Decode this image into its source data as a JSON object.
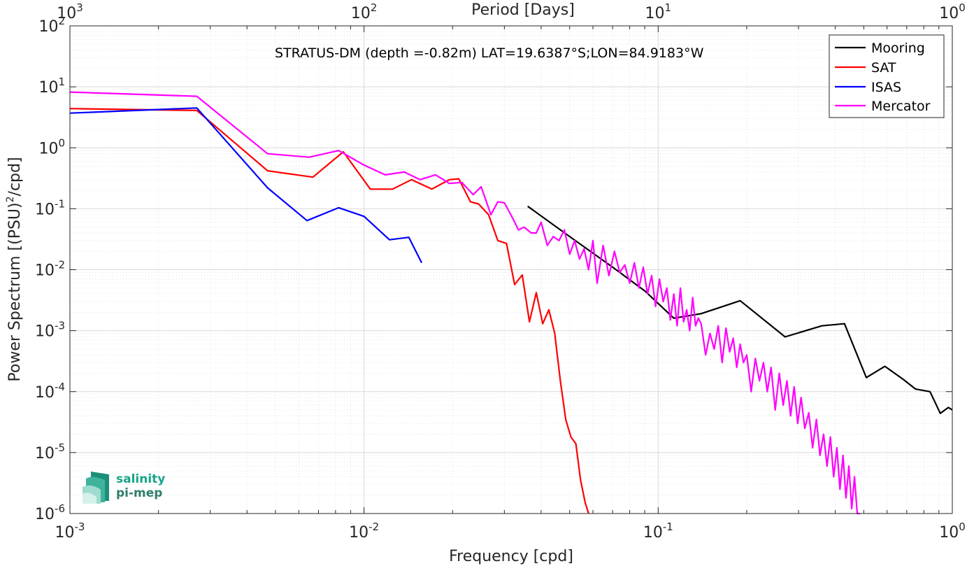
{
  "chart_data": {
    "type": "line",
    "title": "STRATUS-DM (depth =-0.82m) LAT=19.6387°S;LON=84.9183°W",
    "xlabel": "Frequency [cpd]",
    "ylabel": "Power Spectrum [(PSU)²/cpd]",
    "ylabel_main": "Power Spectrum [(PSU)",
    "ylabel_sup": "2",
    "ylabel_tail": "/cpd]",
    "top_xlabel": "Period [Days]",
    "xscale": "log",
    "yscale": "log",
    "xlim": [
      0.001,
      1
    ],
    "ylim": [
      1e-06,
      100
    ],
    "grid": true,
    "legend_position": "top-right",
    "x_ticks": [
      {
        "base": "10",
        "exp": "-3"
      },
      {
        "base": "10",
        "exp": "-2"
      },
      {
        "base": "10",
        "exp": "-1"
      },
      {
        "base": "10",
        "exp": "0"
      }
    ],
    "top_ticks": [
      {
        "base": "10",
        "exp": "3"
      },
      {
        "base": "10",
        "exp": "2"
      },
      {
        "base": "10",
        "exp": "1"
      },
      {
        "base": "10",
        "exp": "0"
      }
    ],
    "y_ticks": [
      {
        "base": "10",
        "exp": "2"
      },
      {
        "base": "10",
        "exp": "1"
      },
      {
        "base": "10",
        "exp": "0"
      },
      {
        "base": "10",
        "exp": "-1"
      },
      {
        "base": "10",
        "exp": "-2"
      },
      {
        "base": "10",
        "exp": "-3"
      },
      {
        "base": "10",
        "exp": "-4"
      },
      {
        "base": "10",
        "exp": "-5"
      },
      {
        "base": "10",
        "exp": "-6"
      }
    ],
    "series": [
      {
        "name": "Mooring",
        "color": "#000000",
        "x": [
          0.036,
          0.05,
          0.07,
          0.09,
          0.113,
          0.14,
          0.19,
          0.27,
          0.36,
          0.43,
          0.51,
          0.59,
          0.68,
          0.75,
          0.84,
          0.91,
          0.97,
          1.0
        ],
        "y": [
          0.11,
          0.035,
          0.011,
          0.0045,
          0.0016,
          0.0019,
          0.0031,
          0.00079,
          0.0012,
          0.0013,
          0.00017,
          0.00026,
          0.00016,
          0.00011,
          0.0001,
          4.4e-05,
          5.5e-05,
          5e-05
        ]
      },
      {
        "name": "SAT",
        "color": "#ff0000",
        "x": [
          0.001,
          0.0027,
          0.0047,
          0.0067,
          0.0085,
          0.0105,
          0.0125,
          0.0145,
          0.017,
          0.0195,
          0.021,
          0.023,
          0.0245,
          0.0265,
          0.0285,
          0.0305,
          0.0325,
          0.0345,
          0.0365,
          0.0385,
          0.0405,
          0.0425,
          0.0445,
          0.0465,
          0.0485,
          0.0505,
          0.0525,
          0.0545,
          0.0565,
          0.058
        ],
        "y": [
          4.4,
          4.1,
          0.42,
          0.33,
          0.86,
          0.21,
          0.21,
          0.3,
          0.21,
          0.3,
          0.31,
          0.13,
          0.12,
          0.08,
          0.03,
          0.027,
          0.0057,
          0.0082,
          0.0014,
          0.0042,
          0.0013,
          0.0022,
          0.0009,
          0.00015,
          3.5e-05,
          1.8e-05,
          1.4e-05,
          3.5e-06,
          1.5e-06,
          1e-06
        ]
      },
      {
        "name": "ISAS",
        "color": "#0000ff",
        "x": [
          0.001,
          0.0027,
          0.0047,
          0.0064,
          0.0082,
          0.01,
          0.0122,
          0.0142,
          0.0157
        ],
        "y": [
          3.7,
          4.5,
          0.22,
          0.064,
          0.104,
          0.075,
          0.031,
          0.034,
          0.013
        ]
      },
      {
        "name": "Mercator",
        "color": "#ff00ff",
        "x": [
          0.001,
          0.0027,
          0.0047,
          0.0065,
          0.0082,
          0.01,
          0.0118,
          0.0137,
          0.0155,
          0.0175,
          0.0195,
          0.0215,
          0.0235,
          0.025,
          0.027,
          0.0285,
          0.03,
          0.032,
          0.0335,
          0.035,
          0.037,
          0.0385,
          0.04,
          0.042,
          0.044,
          0.046,
          0.048,
          0.05,
          0.052,
          0.054,
          0.056,
          0.058,
          0.06,
          0.062,
          0.065,
          0.068,
          0.071,
          0.074,
          0.077,
          0.08,
          0.083,
          0.086,
          0.089,
          0.092,
          0.095,
          0.098,
          0.101,
          0.104,
          0.107,
          0.11,
          0.113,
          0.116,
          0.119,
          0.122,
          0.125,
          0.128,
          0.131,
          0.134,
          0.137,
          0.14,
          0.145,
          0.15,
          0.155,
          0.16,
          0.165,
          0.17,
          0.175,
          0.18,
          0.185,
          0.19,
          0.195,
          0.2,
          0.207,
          0.214,
          0.221,
          0.228,
          0.235,
          0.242,
          0.25,
          0.258,
          0.266,
          0.274,
          0.282,
          0.29,
          0.298,
          0.306,
          0.315,
          0.325,
          0.335,
          0.345,
          0.355,
          0.365,
          0.375,
          0.385,
          0.395,
          0.405,
          0.415,
          0.425,
          0.435,
          0.445,
          0.455,
          0.465,
          0.475,
          0.485
        ],
        "y": [
          8.2,
          7.0,
          0.8,
          0.7,
          0.9,
          0.52,
          0.36,
          0.4,
          0.3,
          0.36,
          0.26,
          0.27,
          0.17,
          0.23,
          0.08,
          0.13,
          0.125,
          0.07,
          0.045,
          0.05,
          0.04,
          0.04,
          0.06,
          0.025,
          0.035,
          0.03,
          0.045,
          0.018,
          0.03,
          0.015,
          0.022,
          0.01,
          0.03,
          0.006,
          0.025,
          0.008,
          0.02,
          0.009,
          0.012,
          0.006,
          0.013,
          0.005,
          0.011,
          0.004,
          0.008,
          0.0025,
          0.007,
          0.003,
          0.005,
          0.0015,
          0.004,
          0.0012,
          0.005,
          0.0014,
          0.0022,
          0.001,
          0.0035,
          0.0012,
          0.0016,
          0.0013,
          0.0004,
          0.0009,
          0.0005,
          0.0012,
          0.0003,
          0.0011,
          0.00045,
          0.00075,
          0.00025,
          0.0006,
          0.0003,
          0.0004,
          0.0001,
          0.00035,
          0.00015,
          0.0003,
          0.0001,
          0.00025,
          5e-05,
          0.0002,
          6e-05,
          0.00015,
          4e-05,
          0.00012,
          3e-05,
          8e-05,
          2.5e-05,
          4.5e-05,
          1.2e-05,
          3.5e-05,
          9e-06,
          2e-05,
          6e-06,
          1.8e-05,
          4e-06,
          1.2e-05,
          2.5e-06,
          9e-06,
          1.8e-06,
          6e-06,
          1.2e-06,
          4e-06,
          1e-06,
          1e-06
        ]
      }
    ]
  },
  "logo": {
    "line1": "salinity",
    "line2": "pi-mep",
    "color_primary": "#17a589",
    "color_secondary": "#2e7d6b"
  }
}
